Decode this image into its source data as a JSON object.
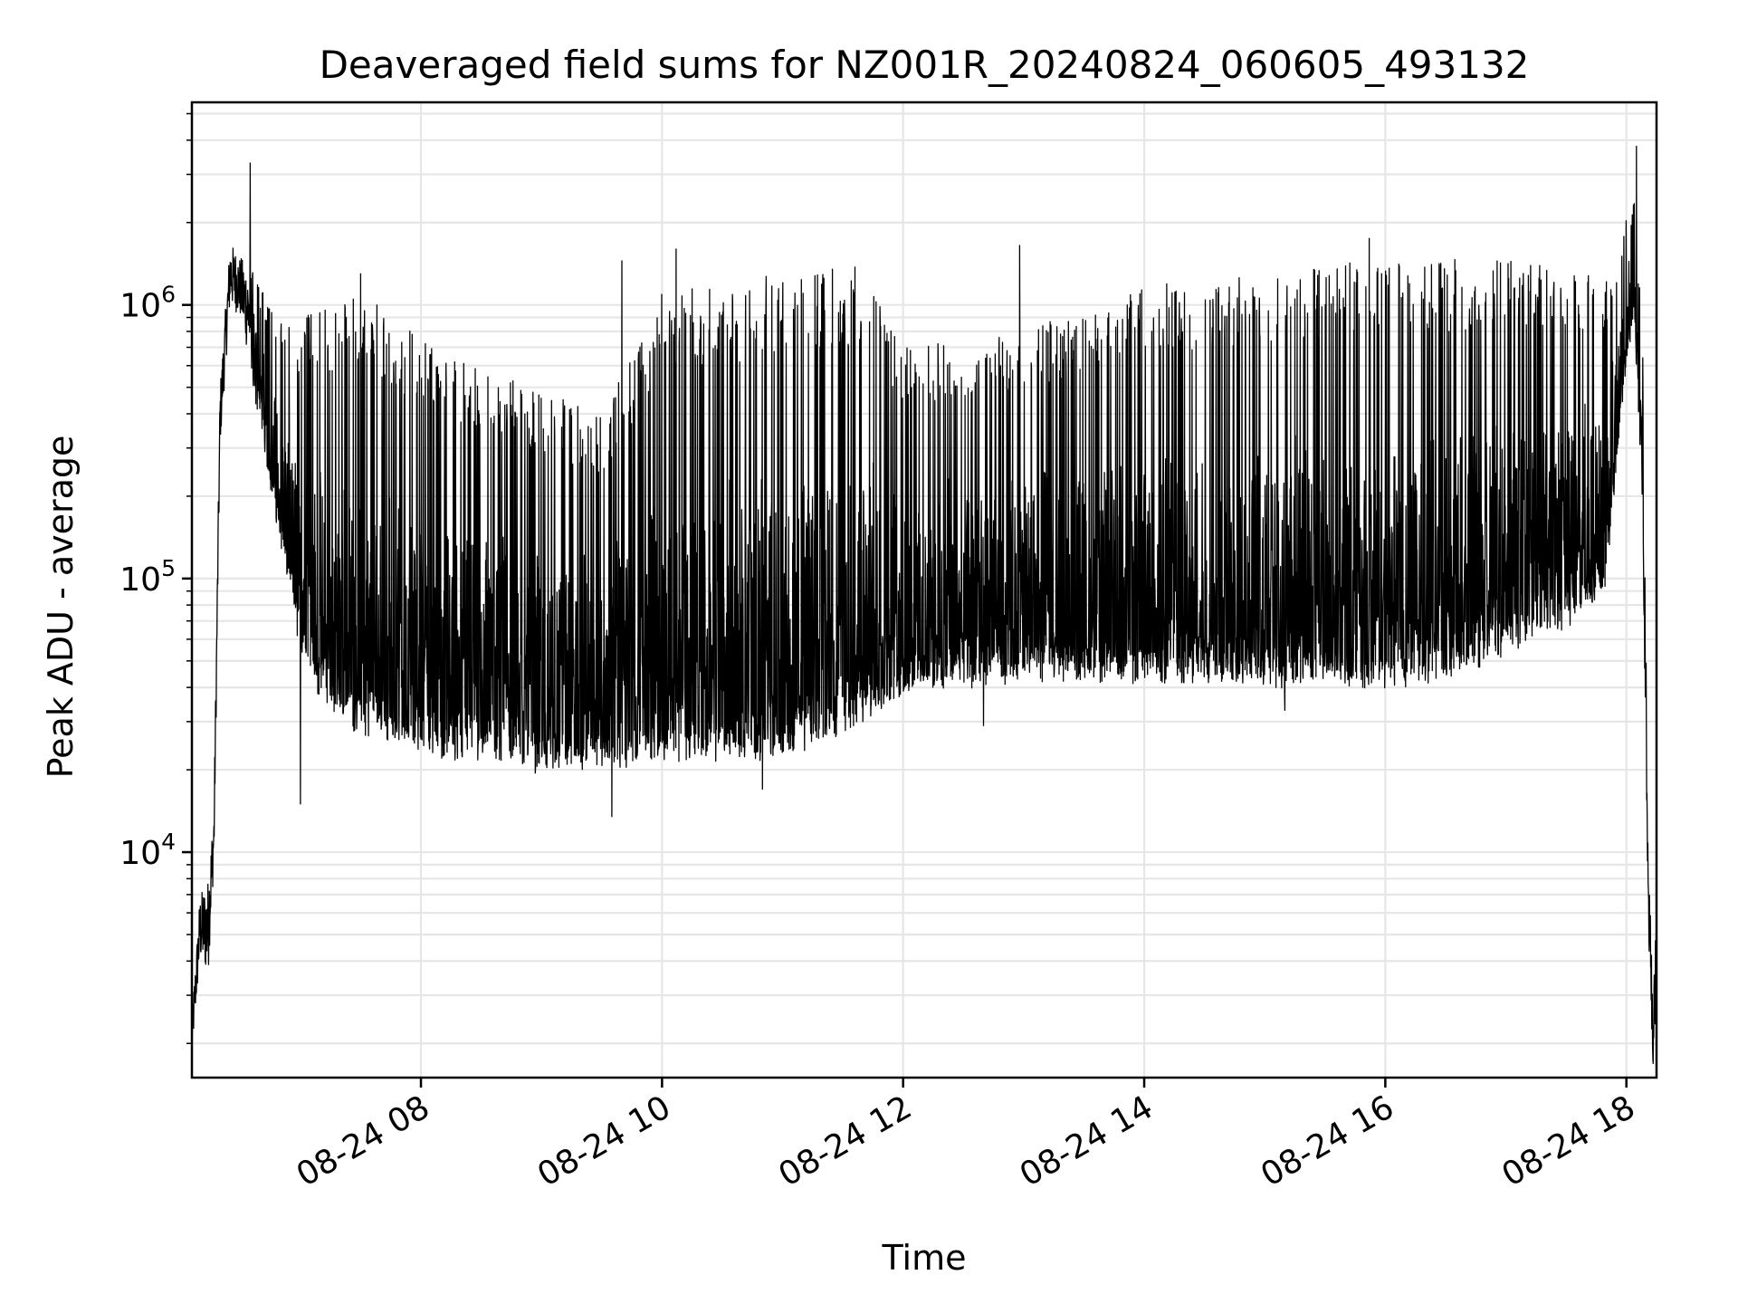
{
  "chart_data": {
    "type": "line",
    "title": "Deaveraged field sums for NZ001R_20240824_060605_493132",
    "xlabel": "Time",
    "ylabel": "Peak ADU - average",
    "yscale": "log",
    "grid": true,
    "xlim": [
      "2024-08-24 06:06",
      "2024-08-24 18:15"
    ],
    "ylim": [
      1500,
      5500000
    ],
    "x_ticks": [
      {
        "value": "2024-08-24 08:00",
        "label": "08-24 08"
      },
      {
        "value": "2024-08-24 10:00",
        "label": "08-24 10"
      },
      {
        "value": "2024-08-24 12:00",
        "label": "08-24 12"
      },
      {
        "value": "2024-08-24 14:00",
        "label": "08-24 14"
      },
      {
        "value": "2024-08-24 16:00",
        "label": "08-24 16"
      },
      {
        "value": "2024-08-24 18:00",
        "label": "08-24 18"
      }
    ],
    "y_ticks": [
      {
        "value": 10000,
        "base": "10",
        "exp": "4"
      },
      {
        "value": 100000,
        "base": "10",
        "exp": "5"
      },
      {
        "value": 1000000,
        "base": "10",
        "exp": "6"
      }
    ],
    "series": [
      {
        "color": "#000000",
        "style": "dense high-frequency noise between lower and upper envelopes",
        "lower_envelope": [
          {
            "x": "2024-08-24 06:06",
            "y": 1800
          },
          {
            "x": "2024-08-24 06:10",
            "y": 4000
          },
          {
            "x": "2024-08-24 06:14",
            "y": 3500
          },
          {
            "x": "2024-08-24 06:17",
            "y": 9000
          },
          {
            "x": "2024-08-24 06:20",
            "y": 300000
          },
          {
            "x": "2024-08-24 06:25",
            "y": 1000000
          },
          {
            "x": "2024-08-24 06:30",
            "y": 900000
          },
          {
            "x": "2024-08-24 06:35",
            "y": 600000
          },
          {
            "x": "2024-08-24 06:40",
            "y": 400000
          },
          {
            "x": "2024-08-24 06:50",
            "y": 150000
          },
          {
            "x": "2024-08-24 07:00",
            "y": 60000
          },
          {
            "x": "2024-08-24 07:10",
            "y": 40000
          },
          {
            "x": "2024-08-24 07:30",
            "y": 30000
          },
          {
            "x": "2024-08-24 08:00",
            "y": 26000
          },
          {
            "x": "2024-08-24 09:00",
            "y": 22000
          },
          {
            "x": "2024-08-24 10:00",
            "y": 24000
          },
          {
            "x": "2024-08-24 11:00",
            "y": 25000
          },
          {
            "x": "2024-08-24 11:30",
            "y": 30000
          },
          {
            "x": "2024-08-24 12:00",
            "y": 42000
          },
          {
            "x": "2024-08-24 13:00",
            "y": 48000
          },
          {
            "x": "2024-08-24 14:00",
            "y": 47000
          },
          {
            "x": "2024-08-24 15:00",
            "y": 45000
          },
          {
            "x": "2024-08-24 16:00",
            "y": 45000
          },
          {
            "x": "2024-08-24 16:30",
            "y": 48000
          },
          {
            "x": "2024-08-24 17:00",
            "y": 60000
          },
          {
            "x": "2024-08-24 17:30",
            "y": 75000
          },
          {
            "x": "2024-08-24 17:50",
            "y": 100000
          },
          {
            "x": "2024-08-24 18:00",
            "y": 700000
          },
          {
            "x": "2024-08-24 18:04",
            "y": 1000000
          },
          {
            "x": "2024-08-24 18:08",
            "y": 200000
          },
          {
            "x": "2024-08-24 18:11",
            "y": 5000
          },
          {
            "x": "2024-08-24 18:13",
            "y": 1800
          },
          {
            "x": "2024-08-24 18:15",
            "y": 2500
          }
        ],
        "upper_envelope": [
          {
            "x": "2024-08-24 06:06",
            "y": 2500
          },
          {
            "x": "2024-08-24 06:10",
            "y": 7000
          },
          {
            "x": "2024-08-24 06:14",
            "y": 8000
          },
          {
            "x": "2024-08-24 06:17",
            "y": 15000
          },
          {
            "x": "2024-08-24 06:20",
            "y": 500000
          },
          {
            "x": "2024-08-24 06:25",
            "y": 1700000
          },
          {
            "x": "2024-08-24 06:30",
            "y": 1500000
          },
          {
            "x": "2024-08-24 06:35",
            "y": 1400000
          },
          {
            "x": "2024-08-24 06:45",
            "y": 1000000
          },
          {
            "x": "2024-08-24 07:00",
            "y": 900000
          },
          {
            "x": "2024-08-24 07:30",
            "y": 1100000
          },
          {
            "x": "2024-08-24 08:00",
            "y": 800000
          },
          {
            "x": "2024-08-24 08:30",
            "y": 600000
          },
          {
            "x": "2024-08-24 09:00",
            "y": 500000
          },
          {
            "x": "2024-08-24 09:30",
            "y": 400000
          },
          {
            "x": "2024-08-24 10:00",
            "y": 1100000
          },
          {
            "x": "2024-08-24 11:00",
            "y": 1300000
          },
          {
            "x": "2024-08-24 11:40",
            "y": 1400000
          },
          {
            "x": "2024-08-24 12:00",
            "y": 700000
          },
          {
            "x": "2024-08-24 13:00",
            "y": 800000
          },
          {
            "x": "2024-08-24 14:00",
            "y": 1200000
          },
          {
            "x": "2024-08-24 15:00",
            "y": 1300000
          },
          {
            "x": "2024-08-24 16:00",
            "y": 1500000
          },
          {
            "x": "2024-08-24 17:00",
            "y": 1450000
          },
          {
            "x": "2024-08-24 17:50",
            "y": 1300000
          },
          {
            "x": "2024-08-24 18:04",
            "y": 2500000
          },
          {
            "x": "2024-08-24 18:08",
            "y": 800000
          },
          {
            "x": "2024-08-24 18:11",
            "y": 8000
          },
          {
            "x": "2024-08-24 18:13",
            "y": 5000
          },
          {
            "x": "2024-08-24 18:15",
            "y": 6000
          }
        ],
        "spikes": [
          {
            "x": "2024-08-24 06:35",
            "y": 3300000
          },
          {
            "x": "2024-08-24 07:30",
            "y": 1300000
          },
          {
            "x": "2024-08-24 09:40",
            "y": 1450000
          },
          {
            "x": "2024-08-24 10:07",
            "y": 1600000
          },
          {
            "x": "2024-08-24 12:58",
            "y": 1650000
          },
          {
            "x": "2024-08-24 15:52",
            "y": 1750000
          },
          {
            "x": "2024-08-24 18:05",
            "y": 3800000
          }
        ],
        "dips": [
          {
            "x": "2024-08-24 07:00",
            "y": 15000
          },
          {
            "x": "2024-08-24 09:35",
            "y": 13500
          },
          {
            "x": "2024-08-24 10:50",
            "y": 17000
          },
          {
            "x": "2024-08-24 12:40",
            "y": 29000
          },
          {
            "x": "2024-08-24 15:10",
            "y": 33000
          }
        ]
      }
    ]
  }
}
